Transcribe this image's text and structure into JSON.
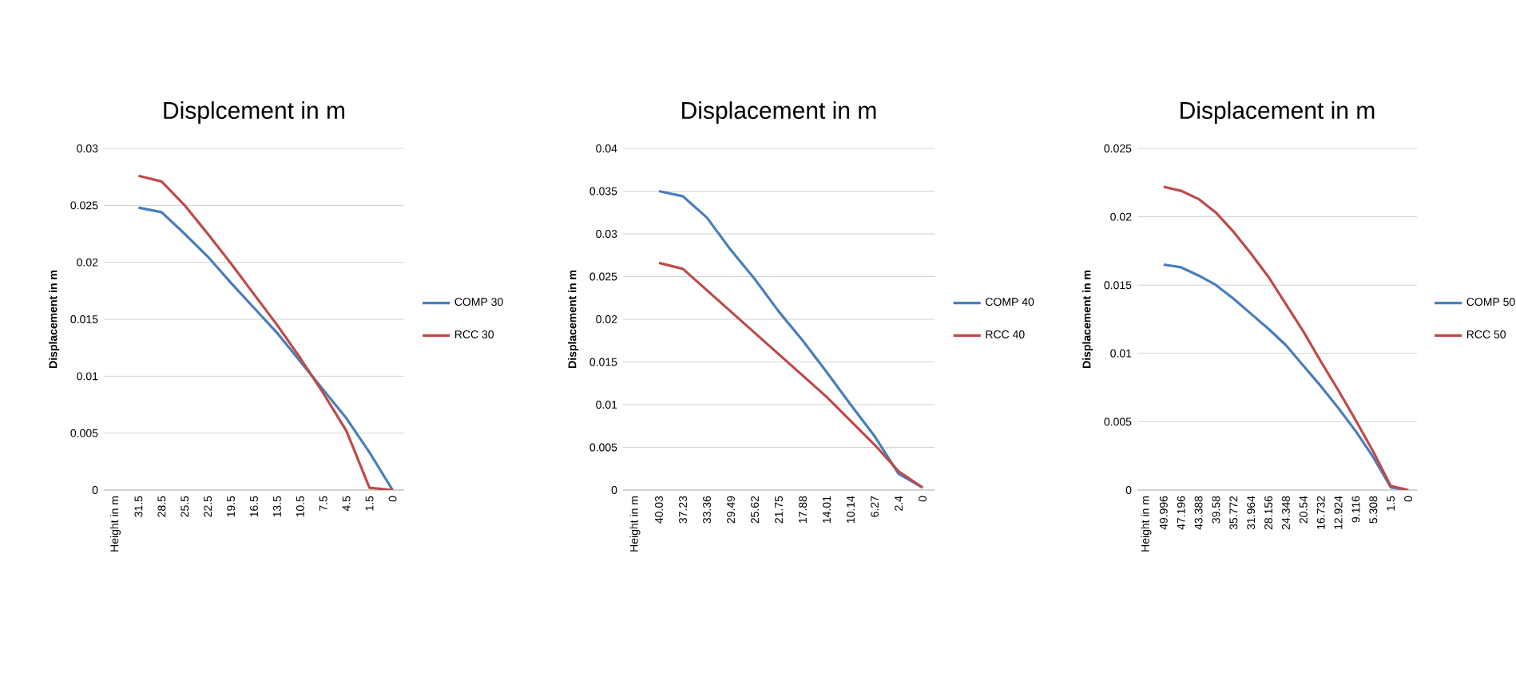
{
  "chart_data": [
    {
      "type": "line",
      "title": "Displcement in m",
      "ylabel": "Displacement in m",
      "categories": [
        "Height in m",
        "31.5",
        "28.5",
        "25.5",
        "22.5",
        "19.5",
        "16.5",
        "13.5",
        "10.5",
        "7.5",
        "4.5",
        "1.5",
        "0"
      ],
      "series": [
        {
          "name": "COMP 30",
          "color": "#4a7ebb",
          "values": [
            null,
            0.0248,
            0.0244,
            0.0225,
            0.0205,
            0.0182,
            0.016,
            0.0138,
            0.0113,
            0.0088,
            0.0063,
            0.0033,
            0
          ]
        },
        {
          "name": "RCC 30",
          "color": "#be4b48",
          "values": [
            null,
            0.0276,
            0.0271,
            0.025,
            0.0225,
            0.0199,
            0.0172,
            0.0145,
            0.0116,
            0.0085,
            0.0052,
            0.0002,
            0
          ]
        }
      ],
      "ylim": [
        0,
        0.03
      ],
      "yticks": [
        0,
        0.005,
        0.01,
        0.015,
        0.02,
        0.025,
        0.03
      ],
      "grid": "y",
      "legend": "right",
      "marker": "none",
      "line_style": "solid"
    },
    {
      "type": "line",
      "title": "Displacement in m",
      "ylabel": "Displacement in m",
      "categories": [
        "Height in m",
        "40.03",
        "37.23",
        "33.36",
        "29.49",
        "25.62",
        "21.75",
        "17.88",
        "14.01",
        "10.14",
        "6.27",
        "2.4",
        "0"
      ],
      "series": [
        {
          "name": "COMP 40",
          "color": "#4a7ebb",
          "values": [
            null,
            0.035,
            0.0344,
            0.0319,
            0.0281,
            0.0247,
            0.0209,
            0.0175,
            0.0138,
            0.01,
            0.0063,
            0.0019,
            0.0003
          ]
        },
        {
          "name": "RCC 40",
          "color": "#be4b48",
          "values": [
            null,
            0.0266,
            0.0259,
            0.0234,
            0.0209,
            0.0184,
            0.0159,
            0.0134,
            0.0109,
            0.0081,
            0.0053,
            0.0022,
            0.0003
          ]
        }
      ],
      "ylim": [
        0,
        0.04
      ],
      "yticks": [
        0,
        0.005,
        0.01,
        0.015,
        0.02,
        0.025,
        0.03,
        0.035,
        0.04
      ],
      "grid": "y",
      "legend": "right",
      "marker": "none",
      "line_style": "solid"
    },
    {
      "type": "line",
      "title": "Displacement in m",
      "ylabel": "Displacement in m",
      "categories": [
        "Height in m",
        "49.996",
        "47.196",
        "43.388",
        "39.58",
        "35.772",
        "31.964",
        "28.156",
        "24.348",
        "20.54",
        "16.732",
        "12.924",
        "9.116",
        "5.308",
        "1.5",
        "0"
      ],
      "series": [
        {
          "name": "COMP 50",
          "color": "#4a7ebb",
          "values": [
            null,
            0.0165,
            0.0163,
            0.0157,
            0.015,
            0.014,
            0.0129,
            0.0118,
            0.0106,
            0.0091,
            0.0076,
            0.006,
            0.0043,
            0.0024,
            0.0002,
            0
          ]
        },
        {
          "name": "RCC 50",
          "color": "#be4b48",
          "values": [
            null,
            0.0222,
            0.0219,
            0.0213,
            0.0203,
            0.0189,
            0.0173,
            0.0156,
            0.0136,
            0.0116,
            0.0094,
            0.0073,
            0.0051,
            0.0028,
            0.0003,
            0
          ]
        }
      ],
      "ylim": [
        0,
        0.025
      ],
      "yticks": [
        0,
        0.005,
        0.01,
        0.015,
        0.02,
        0.025
      ],
      "grid": "y",
      "legend": "right",
      "marker": "none",
      "line_style": "solid"
    }
  ]
}
